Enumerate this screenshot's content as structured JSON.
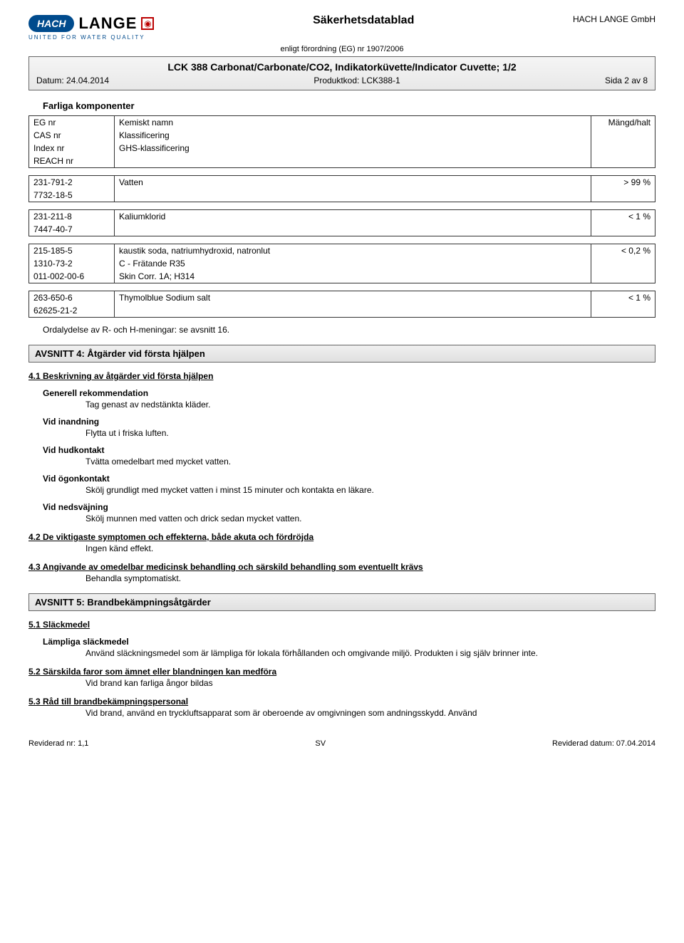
{
  "header": {
    "company": "HACH LANGE GmbH",
    "hach": "HACH",
    "lange": "LANGE",
    "tagline": "UNITED FOR WATER QUALITY",
    "doc_title": "Säkerhetsdatablad",
    "regulation": "enligt förordning (EG) nr 1907/2006"
  },
  "titlebar": {
    "product": "LCK 388 Carbonat/Carbonate/CO2, Indikatorküvette/Indicator Cuvette; 1/2",
    "date_label": "Datum: 24.04.2014",
    "code_label": "Produktkod: LCK388-1",
    "page_label": "Sida 2 av 8"
  },
  "components": {
    "heading": "Farliga komponenter",
    "header_rows": {
      "eg": "EG nr",
      "cas": "CAS nr",
      "index": "Index nr",
      "reach": "REACH nr",
      "name": "Kemiskt namn",
      "class": "Klassificering",
      "ghs": "GHS-klassificering",
      "amount": "Mängd/halt"
    },
    "items": [
      {
        "eg": "231-791-2",
        "cas": "7732-18-5",
        "index": "",
        "reach": "",
        "name": "Vatten",
        "class": "",
        "ghs": "",
        "amount": "> 99 %"
      },
      {
        "eg": "231-211-8",
        "cas": "7447-40-7",
        "index": "",
        "reach": "",
        "name": "Kaliumklorid",
        "class": "",
        "ghs": "",
        "amount": "< 1 %"
      },
      {
        "eg": "215-185-5",
        "cas": "1310-73-2",
        "index": "011-002-00-6",
        "reach": "",
        "name": "kaustik soda, natriumhydroxid, natronlut",
        "class": "C - Frätande  R35",
        "ghs": "Skin Corr. 1A; H314",
        "amount": "< 0,2 %"
      },
      {
        "eg": "263-650-6",
        "cas": "62625-21-2",
        "index": "",
        "reach": "",
        "name": "Thymolblue Sodium salt",
        "class": "",
        "ghs": "",
        "amount": "< 1 %"
      }
    ],
    "footnote": "Ordalydelse av R- och H-meningar: se avsnitt 16."
  },
  "section4": {
    "title": "AVSNITT 4: Åtgärder vid första hjälpen",
    "s41": "4.1 Beskrivning av åtgärder vid första hjälpen",
    "gen_h": "Generell rekommendation",
    "gen_t": "Tag genast av nedstänkta kläder.",
    "inh_h": "Vid inandning",
    "inh_t": "Flytta ut i friska luften.",
    "skin_h": "Vid hudkontakt",
    "skin_t": "Tvätta omedelbart med mycket vatten.",
    "eye_h": "Vid ögonkontakt",
    "eye_t": "Skölj grundligt med mycket vatten i minst 15 minuter och kontakta en läkare.",
    "swl_h": "Vid nedsväjning",
    "swl_t": "Skölj munnen med vatten och drick sedan mycket vatten.",
    "s42": "4.2 De viktigaste symptomen och effekterna, både akuta och fördröjda",
    "s42_t": "Ingen känd effekt.",
    "s43": "4.3 Angivande av omedelbar medicinsk behandling och särskild behandling som eventuellt krävs",
    "s43_t": "Behandla symptomatiskt."
  },
  "section5": {
    "title": "AVSNITT 5: Brandbekämpningsåtgärder",
    "s51": "5.1 Släckmedel",
    "s51_h": "Lämpliga släckmedel",
    "s51_t": "Använd släckningsmedel som är lämpliga för lokala förhållanden och omgivande miljö. Produkten i sig själv brinner inte.",
    "s52": "5.2 Särskilda faror som ämnet eller blandningen kan medföra",
    "s52_t": "Vid brand kan farliga ångor bildas",
    "s53": "5.3 Råd till brandbekämpningspersonal",
    "s53_t": "Vid brand, använd en tryckluftsapparat som är oberoende av omgivningen som andningsskydd. Använd"
  },
  "footer": {
    "rev": "Reviderad nr: 1,1",
    "lang": "SV",
    "date": "Reviderad datum: 07.04.2014"
  }
}
